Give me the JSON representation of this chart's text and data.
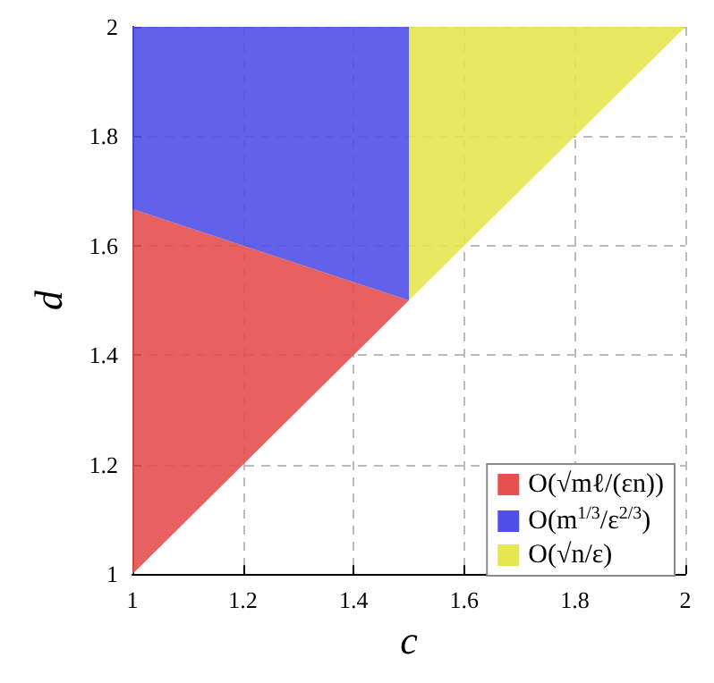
{
  "chart_data": {
    "type": "area",
    "xlabel": "c",
    "ylabel": "d",
    "xlim": [
      1,
      2
    ],
    "ylim": [
      1,
      2
    ],
    "xticks": [
      1,
      1.2,
      1.4,
      1.6,
      1.8,
      2
    ],
    "yticks": [
      1,
      1.2,
      1.4,
      1.6,
      1.8,
      2
    ],
    "grid": true,
    "legend": "bottom right",
    "series": [
      {
        "name": "O(√mℓ/(εn))",
        "color": "#e65050",
        "x": [
          1,
          1.5,
          1
        ],
        "values": [
          1,
          1.5,
          1.667
        ]
      },
      {
        "name": "O(m$^{1/3}$/ε$^{2/3}$)",
        "color": "#5050e8",
        "x": [
          1,
          1.5,
          1.5,
          1
        ],
        "values": [
          1.667,
          1.5,
          2,
          2
        ]
      },
      {
        "name": "O(√n/ε)",
        "color": "#e6e650",
        "x": [
          1.5,
          2,
          1.5
        ],
        "values": [
          1.5,
          2,
          2
        ]
      }
    ]
  }
}
